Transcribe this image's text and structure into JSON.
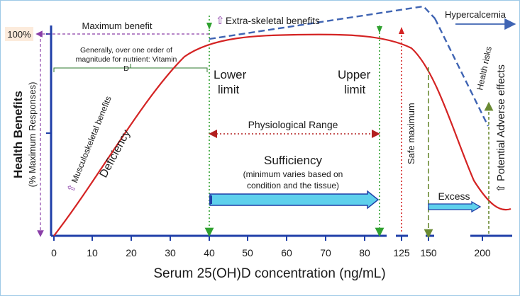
{
  "colors": {
    "curve": "#d42323",
    "axis": "#1f3fa8",
    "dashed": "#3f64b3",
    "green_dotted": "#2fa12f",
    "red_dotted": "#d42323",
    "arrow_fill": "#5ed0ec",
    "arrow_stroke": "#1f3fa8",
    "purple": "#8a3fa8",
    "olive": "#6a8a33",
    "label_bg": "#fcebdc"
  },
  "axes": {
    "y_label_main": "Health Benefits",
    "y_label_sub": "(% Maximum Responses)",
    "x_label": "Serum 25(OH)D concentration (ng/mL)",
    "y_tick_label": "100%",
    "x_ticks": [
      "0",
      "10",
      "20",
      "30",
      "40",
      "50",
      "60",
      "70",
      "80",
      "125",
      "150",
      "200"
    ]
  },
  "labels": {
    "maximum_benefit": "Maximum benefit",
    "extra_skeletal": "Extra-skeletal benefits",
    "extra_skeletal_arrow": "⇧",
    "hypercalcemia": "Hypercalcemia",
    "order_line1": "Generally, over one order of",
    "order_line2": "magnitude for nutrient: Vitamin",
    "order_line3": "D",
    "lower_limit_1": "Lower",
    "lower_limit_2": "limit",
    "upper_limit_1": "Upper",
    "upper_limit_2": "limit",
    "physiological_range": "Physiological Range",
    "sufficiency": "Sufficiency",
    "sufficiency_sub1": "(minimum varies based on",
    "sufficiency_sub2": "condition and the tissue)",
    "musculoskeletal": "Musculoskeletal benefits",
    "musculoskeletal_arrow": "⇧",
    "deficiency": "Deficiency",
    "safe_maximum": "Safe maximum",
    "health_risks": "Health risks",
    "potential_adverse": "Potential Adverse effects",
    "potential_adverse_arrow": "⇧",
    "excess": "Excess"
  }
}
